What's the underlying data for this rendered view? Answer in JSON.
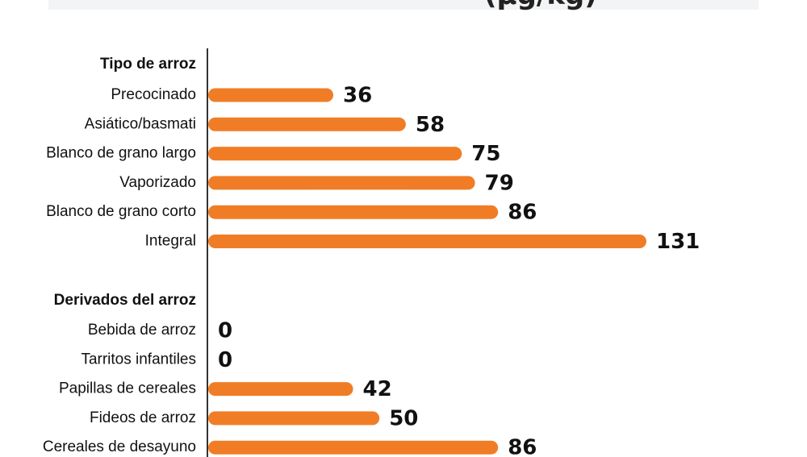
{
  "header": {
    "fragment": "(µg/kg)"
  },
  "colors": {
    "bar": "#f07d26",
    "axis": "#333333",
    "text": "#111111"
  },
  "chart_data": {
    "type": "bar",
    "orientation": "horizontal",
    "xlim": [
      0,
      131
    ],
    "grid": false,
    "groups": [
      {
        "label": "Tipo de arroz",
        "categories": [
          "Precocinado",
          "Asiático/basmati",
          "Blanco de grano largo",
          "Vaporizado",
          "Blanco de grano corto",
          "Integral"
        ],
        "values": [
          36,
          58,
          75,
          79,
          86,
          131
        ]
      },
      {
        "label": "Derivados del arroz",
        "categories": [
          "Bebida de arroz",
          "Tarritos infantiles",
          "Papillas de cereales",
          "Fideos de arroz",
          "Cereales de desayuno"
        ],
        "values": [
          0,
          0,
          42,
          50,
          86
        ]
      }
    ]
  }
}
